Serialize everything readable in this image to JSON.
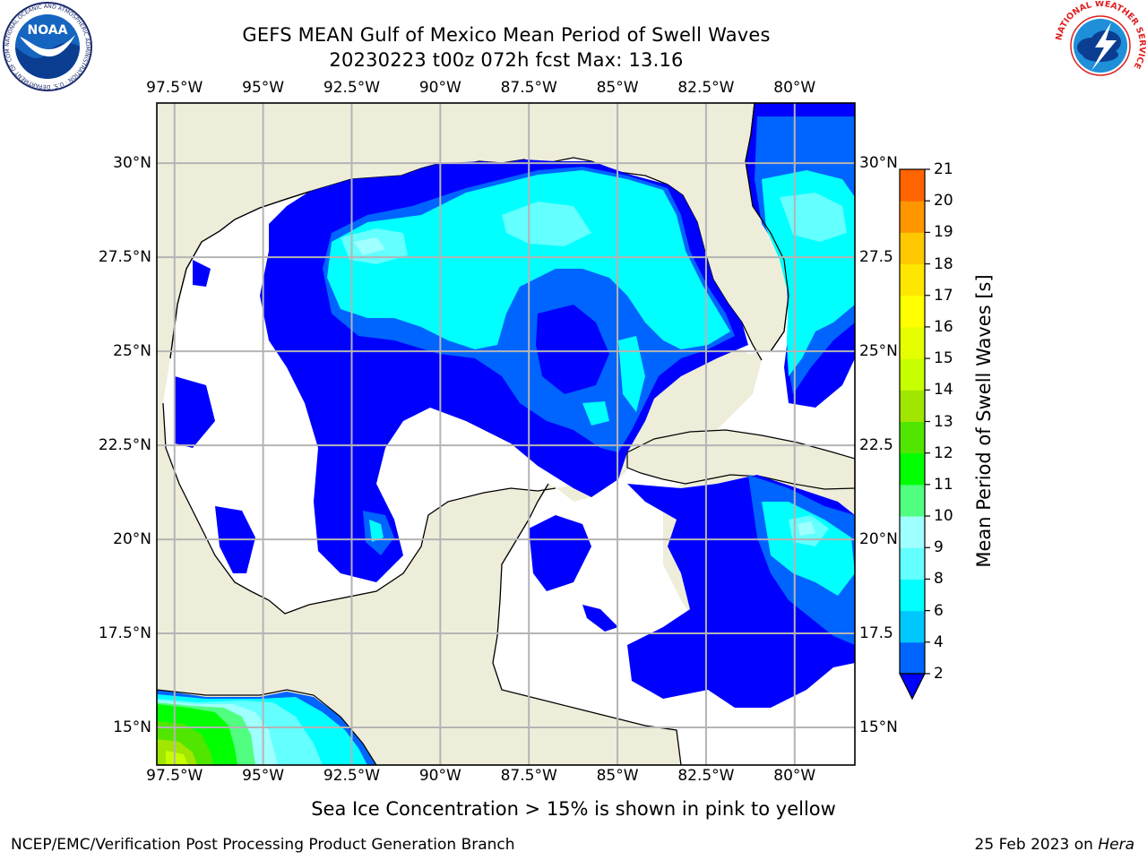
{
  "title_line1": "GEFS MEAN Gulf of Mexico Mean Period of Swell Waves",
  "title_line2": "20230223 t00z 072h fcst   Max: 13.16",
  "lon_labels": [
    "97.5°W",
    "95°W",
    "92.5°W",
    "90°W",
    "87.5°W",
    "85°W",
    "82.5°W",
    "80°W"
  ],
  "lon_values": [
    -97.5,
    -95,
    -92.5,
    -90,
    -87.5,
    -85,
    -82.5,
    -80
  ],
  "lat_labels_left": [
    "30°N",
    "27.5°N",
    "25°N",
    "22.5°N",
    "20°N",
    "17.5°N",
    "15°N"
  ],
  "lat_labels_right": [
    "30°N",
    "27.5",
    "25°N",
    "22.5",
    "20°N",
    "17.5",
    "15°N"
  ],
  "lat_values": [
    30,
    27.5,
    25,
    22.5,
    20,
    17.5,
    15
  ],
  "map_extent": {
    "lon_min": -98,
    "lon_max": -78.3,
    "lat_min": 14,
    "lat_max": 31.6
  },
  "colorbar": {
    "label": "Mean Period of Swell Waves [s]",
    "ticks": [
      "2",
      "4",
      "6",
      "8",
      "9",
      "10",
      "11",
      "12",
      "13",
      "14",
      "15",
      "16",
      "17",
      "18",
      "19",
      "20",
      "21"
    ],
    "levels": [
      2,
      4,
      6,
      8,
      9,
      10,
      11,
      12,
      13,
      14,
      15,
      16,
      17,
      18,
      19,
      20,
      21
    ],
    "colors": [
      "#0064ff",
      "#00c8ff",
      "#00ffff",
      "#64ffff",
      "#a0ffff",
      "#50ff80",
      "#00ff00",
      "#50e600",
      "#a0e600",
      "#c8ff00",
      "#e6ff00",
      "#ffff00",
      "#ffe600",
      "#ffc800",
      "#ff9600",
      "#ff6400",
      "#ff3200",
      "#ff0000"
    ],
    "extend": "min",
    "under_color": "#0000ff"
  },
  "colors": {
    "land": "#eeedda",
    "grid": "#b4b4b4",
    "low_period": "#0000ff",
    "period_2_4": "#0064ff",
    "period_4_6": "#00ffff",
    "period_6_8": "#50ffff",
    "green": "#00ff00",
    "lime": "#c8ff00"
  },
  "footnote": "Sea Ice Concentration > 15% is shown in pink to yellow",
  "credit": "NCEP/EMC/Verification Post Processing Product Generation Branch",
  "date_prefix": "25 Feb 2023 on ",
  "date_machine": "Hera",
  "logos": {
    "left": {
      "text": "NOAA",
      "ring_text": "NATIONAL OCEANIC AND ATMOSPHERIC ADMINISTRATION · U.S. DEPARTMENT OF COMMERCE"
    },
    "right": {
      "ring_text": "NATIONAL WEATHER SERVICE"
    }
  }
}
